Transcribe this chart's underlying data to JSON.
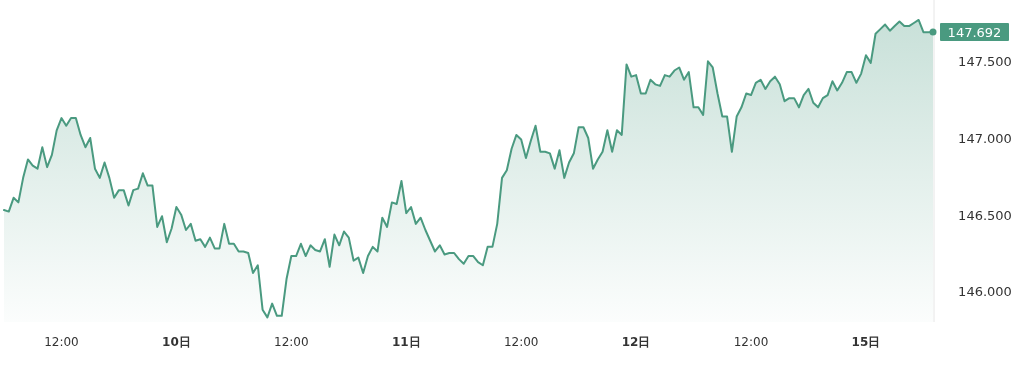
{
  "chart_data": {
    "type": "area",
    "categories": [
      null,
      null,
      null,
      null,
      null,
      null,
      null,
      null,
      null,
      null,
      null,
      null,
      "12:00",
      null,
      null,
      null,
      null,
      null,
      null,
      null,
      null,
      null,
      null,
      null,
      null,
      null,
      null,
      null,
      null,
      null,
      null,
      null,
      null,
      null,
      null,
      null,
      "10日",
      null,
      null,
      null,
      null,
      null,
      null,
      null,
      null,
      null,
      null,
      null,
      null,
      null,
      null,
      null,
      null,
      null,
      null,
      null,
      null,
      null,
      null,
      null,
      "12:00",
      null,
      null,
      null,
      null,
      null,
      null,
      null,
      null,
      null,
      null,
      null,
      null,
      null,
      null,
      null,
      null,
      null,
      null,
      null,
      null,
      null,
      null,
      null,
      "11日",
      null,
      null,
      null,
      null,
      null,
      null,
      null,
      null,
      null,
      null,
      null,
      null,
      null,
      null,
      null,
      null,
      null,
      null,
      null,
      null,
      null,
      null,
      null,
      "12:00",
      null,
      null,
      null,
      null,
      null,
      null,
      null,
      null,
      null,
      null,
      null,
      null,
      null,
      null,
      null,
      null,
      null,
      null,
      null,
      null,
      null,
      null,
      null,
      "12日",
      null,
      null,
      null,
      null,
      null,
      null,
      null,
      null,
      null,
      null,
      null,
      null,
      null,
      null,
      null,
      null,
      null,
      null,
      null,
      null,
      null,
      null,
      null,
      "12:00",
      null,
      null,
      null,
      null,
      null,
      null,
      null,
      null,
      null,
      null,
      null,
      null,
      null,
      null,
      null,
      null,
      null,
      null,
      null,
      null,
      null,
      null,
      null,
      "15日",
      null,
      null,
      null,
      null,
      null,
      null,
      null,
      null,
      null,
      null,
      null,
      null,
      null,
      null
    ],
    "series": [
      {
        "color": "#4a9a80",
        "values": [
          146.53,
          146.52,
          146.61,
          146.58,
          146.74,
          146.86,
          146.82,
          146.8,
          146.94,
          146.81,
          146.89,
          147.05,
          147.13,
          147.08,
          147.13,
          147.13,
          147.02,
          146.94,
          147.0,
          146.8,
          146.74,
          146.84,
          146.74,
          146.61,
          146.66,
          146.66,
          146.56,
          146.66,
          146.67,
          146.77,
          146.69,
          146.69,
          146.42,
          146.49,
          146.32,
          146.41,
          146.55,
          146.5,
          146.4,
          146.44,
          146.33,
          146.34,
          146.29,
          146.35,
          146.28,
          146.28,
          146.44,
          146.31,
          146.31,
          146.26,
          146.26,
          146.25,
          146.12,
          146.17,
          145.88,
          145.83,
          145.92,
          145.84,
          145.84,
          146.08,
          146.23,
          146.23,
          146.31,
          146.23,
          146.3,
          146.27,
          146.26,
          146.34,
          146.16,
          146.37,
          146.3,
          146.39,
          146.35,
          146.2,
          146.22,
          146.12,
          146.23,
          146.29,
          146.26,
          146.48,
          146.42,
          146.58,
          146.57,
          146.72,
          146.51,
          146.55,
          146.44,
          146.48,
          146.4,
          146.33,
          146.26,
          146.3,
          146.24,
          146.25,
          146.25,
          146.21,
          146.18,
          146.23,
          146.23,
          146.19,
          146.17,
          146.29,
          146.29,
          146.44,
          146.74,
          146.79,
          146.93,
          147.02,
          146.99,
          146.87,
          146.98,
          147.08,
          146.91,
          146.91,
          146.9,
          146.8,
          146.92,
          146.74,
          146.84,
          146.9,
          147.07,
          147.07,
          147.0,
          146.8,
          146.86,
          146.91,
          147.05,
          146.91,
          147.05,
          147.02,
          147.48,
          147.4,
          147.41,
          147.29,
          147.29,
          147.38,
          147.35,
          147.34,
          147.41,
          147.4,
          147.44,
          147.46,
          147.38,
          147.43,
          147.2,
          147.2,
          147.15,
          147.5,
          147.46,
          147.29,
          147.14,
          147.14,
          146.91,
          147.14,
          147.2,
          147.29,
          147.28,
          147.36,
          147.38,
          147.32,
          147.37,
          147.4,
          147.35,
          147.24,
          147.26,
          147.26,
          147.2,
          147.28,
          147.32,
          147.23,
          147.2,
          147.26,
          147.28,
          147.37,
          147.31,
          147.36,
          147.43,
          147.43,
          147.36,
          147.42,
          147.54,
          147.49,
          147.68,
          147.71,
          147.74,
          147.7,
          147.73,
          147.76,
          147.73,
          147.73,
          147.75,
          147.77,
          147.69,
          147.69,
          147.692
        ]
      }
    ],
    "ylim": [
      145.8,
      147.9
    ],
    "yticks": [
      {
        "value": 146,
        "label": "146.000"
      },
      {
        "value": 146.5,
        "label": "146.500"
      },
      {
        "value": 147,
        "label": "147.000"
      },
      {
        "value": 147.5,
        "label": "147.500"
      }
    ],
    "annotations": [
      "147.692"
    ]
  }
}
